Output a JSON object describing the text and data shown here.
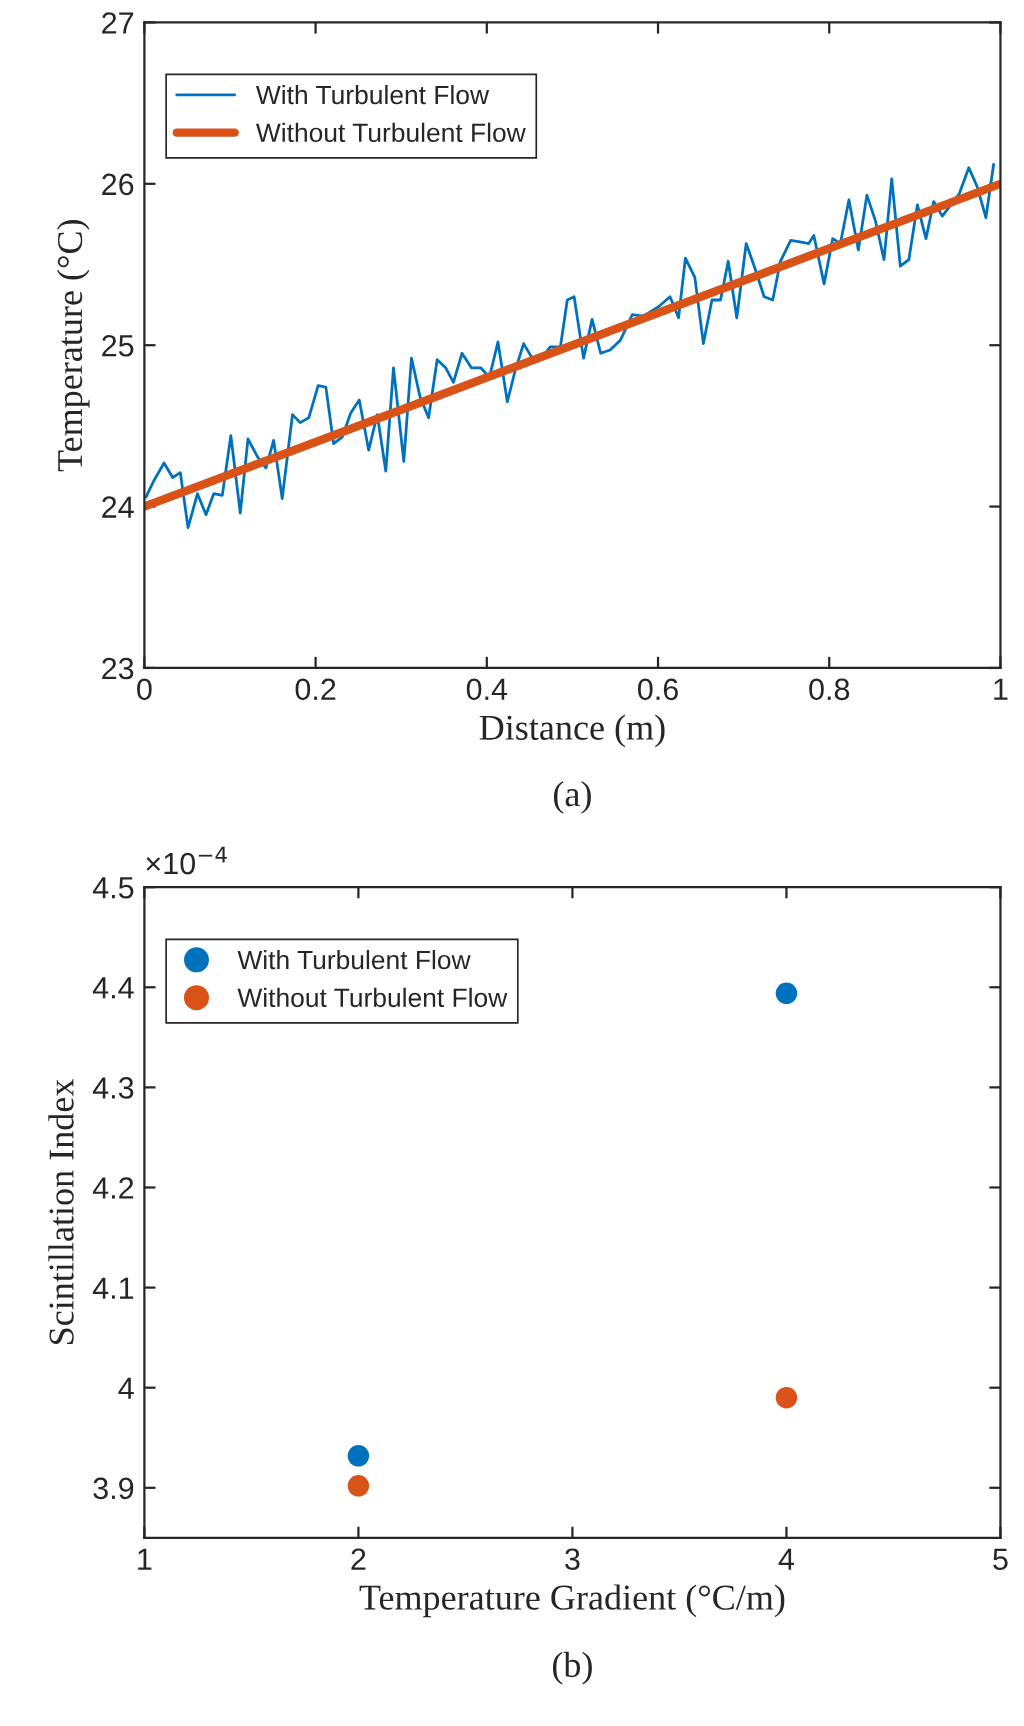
{
  "chart_data": [
    {
      "type": "line",
      "xlabel": "Distance (m)",
      "ylabel": "Temperature (°C)",
      "annotations": [
        "(a)"
      ],
      "xlim": [
        0,
        1
      ],
      "xticks": [
        0,
        0.2,
        0.4,
        0.6,
        0.8,
        1
      ],
      "ylim": [
        23,
        27
      ],
      "yticks": [
        23,
        24,
        25,
        26,
        27
      ],
      "grid": false,
      "legend": "top left",
      "marker": "none",
      "line_style": "solid",
      "series": [
        {
          "name": "With Turbulent Flow",
          "color": "#0072bd",
          "x": [
            0.002,
            0.011,
            0.023,
            0.033,
            0.042,
            0.051,
            0.062,
            0.072,
            0.081,
            0.091,
            0.101,
            0.112,
            0.121,
            0.132,
            0.142,
            0.151,
            0.161,
            0.173,
            0.182,
            0.192,
            0.203,
            0.212,
            0.221,
            0.231,
            0.241,
            0.251,
            0.262,
            0.272,
            0.282,
            0.291,
            0.303,
            0.312,
            0.322,
            0.332,
            0.342,
            0.352,
            0.361,
            0.371,
            0.382,
            0.393,
            0.403,
            0.413,
            0.424,
            0.433,
            0.443,
            0.453,
            0.464,
            0.474,
            0.486,
            0.494,
            0.502,
            0.513,
            0.523,
            0.533,
            0.544,
            0.556,
            0.57,
            0.583,
            0.601,
            0.614,
            0.624,
            0.632,
            0.643,
            0.653,
            0.663,
            0.673,
            0.682,
            0.692,
            0.703,
            0.713,
            0.724,
            0.734,
            0.743,
            0.755,
            0.766,
            0.776,
            0.782,
            0.794,
            0.804,
            0.813,
            0.823,
            0.834,
            0.844,
            0.854,
            0.864,
            0.873,
            0.883,
            0.893,
            0.903,
            0.913,
            0.922,
            0.932,
            0.942,
            0.952,
            0.963,
            0.973,
            0.983,
            0.992
          ],
          "values": [
            24.06,
            24.16,
            24.27,
            24.18,
            24.21,
            23.87,
            24.08,
            23.95,
            24.08,
            24.07,
            24.44,
            23.96,
            24.42,
            24.31,
            24.24,
            24.41,
            24.05,
            24.57,
            24.52,
            24.55,
            24.75,
            24.74,
            24.39,
            24.43,
            24.58,
            24.66,
            24.35,
            24.57,
            24.22,
            24.86,
            24.28,
            24.92,
            24.68,
            24.55,
            24.91,
            24.86,
            24.77,
            24.95,
            24.86,
            24.86,
            24.8,
            25.02,
            24.65,
            24.84,
            25.01,
            24.92,
            24.92,
            24.99,
            24.99,
            25.28,
            25.3,
            24.92,
            25.16,
            24.95,
            24.97,
            25.03,
            25.19,
            25.18,
            25.24,
            25.3,
            25.17,
            25.54,
            25.42,
            25.01,
            25.28,
            25.28,
            25.52,
            25.17,
            25.63,
            25.48,
            25.3,
            25.28,
            25.52,
            25.65,
            25.64,
            25.63,
            25.68,
            25.38,
            25.66,
            25.63,
            25.9,
            25.59,
            25.93,
            25.77,
            25.53,
            26.03,
            25.49,
            25.53,
            25.87,
            25.66,
            25.89,
            25.8,
            25.87,
            25.94,
            26.1,
            25.98,
            25.79,
            26.12
          ]
        },
        {
          "name": "Without Turbulent Flow",
          "color": "#d95319",
          "x": [
            0,
            1
          ],
          "values": [
            24,
            26
          ]
        }
      ]
    },
    {
      "type": "scatter",
      "xlabel": "Temperature Gradient (°C/m)",
      "ylabel": "Scintillation Index",
      "annotations": [
        "×10$^{−4}$",
        "(b)"
      ],
      "xlim": [
        1,
        5
      ],
      "xticks": [
        1,
        2,
        3,
        4,
        5
      ],
      "ylim": [
        3.85,
        4.5
      ],
      "yticks": [
        {
          "value": 3.9,
          "label": "3.9"
        },
        {
          "value": 4.0,
          "label": "4"
        },
        4.1,
        4.2,
        4.3,
        4.4,
        4.5
      ],
      "grid": false,
      "legend": "top left",
      "marker": "circle",
      "series": [
        {
          "name": "With Turbulent Flow",
          "color": "#0072bd",
          "x": [
            2,
            4
          ],
          "values": [
            3.932,
            4.394
          ]
        },
        {
          "name": "Without Turbulent Flow",
          "color": "#d95319",
          "x": [
            2,
            4
          ],
          "values": [
            3.902,
            3.99
          ]
        }
      ]
    }
  ]
}
